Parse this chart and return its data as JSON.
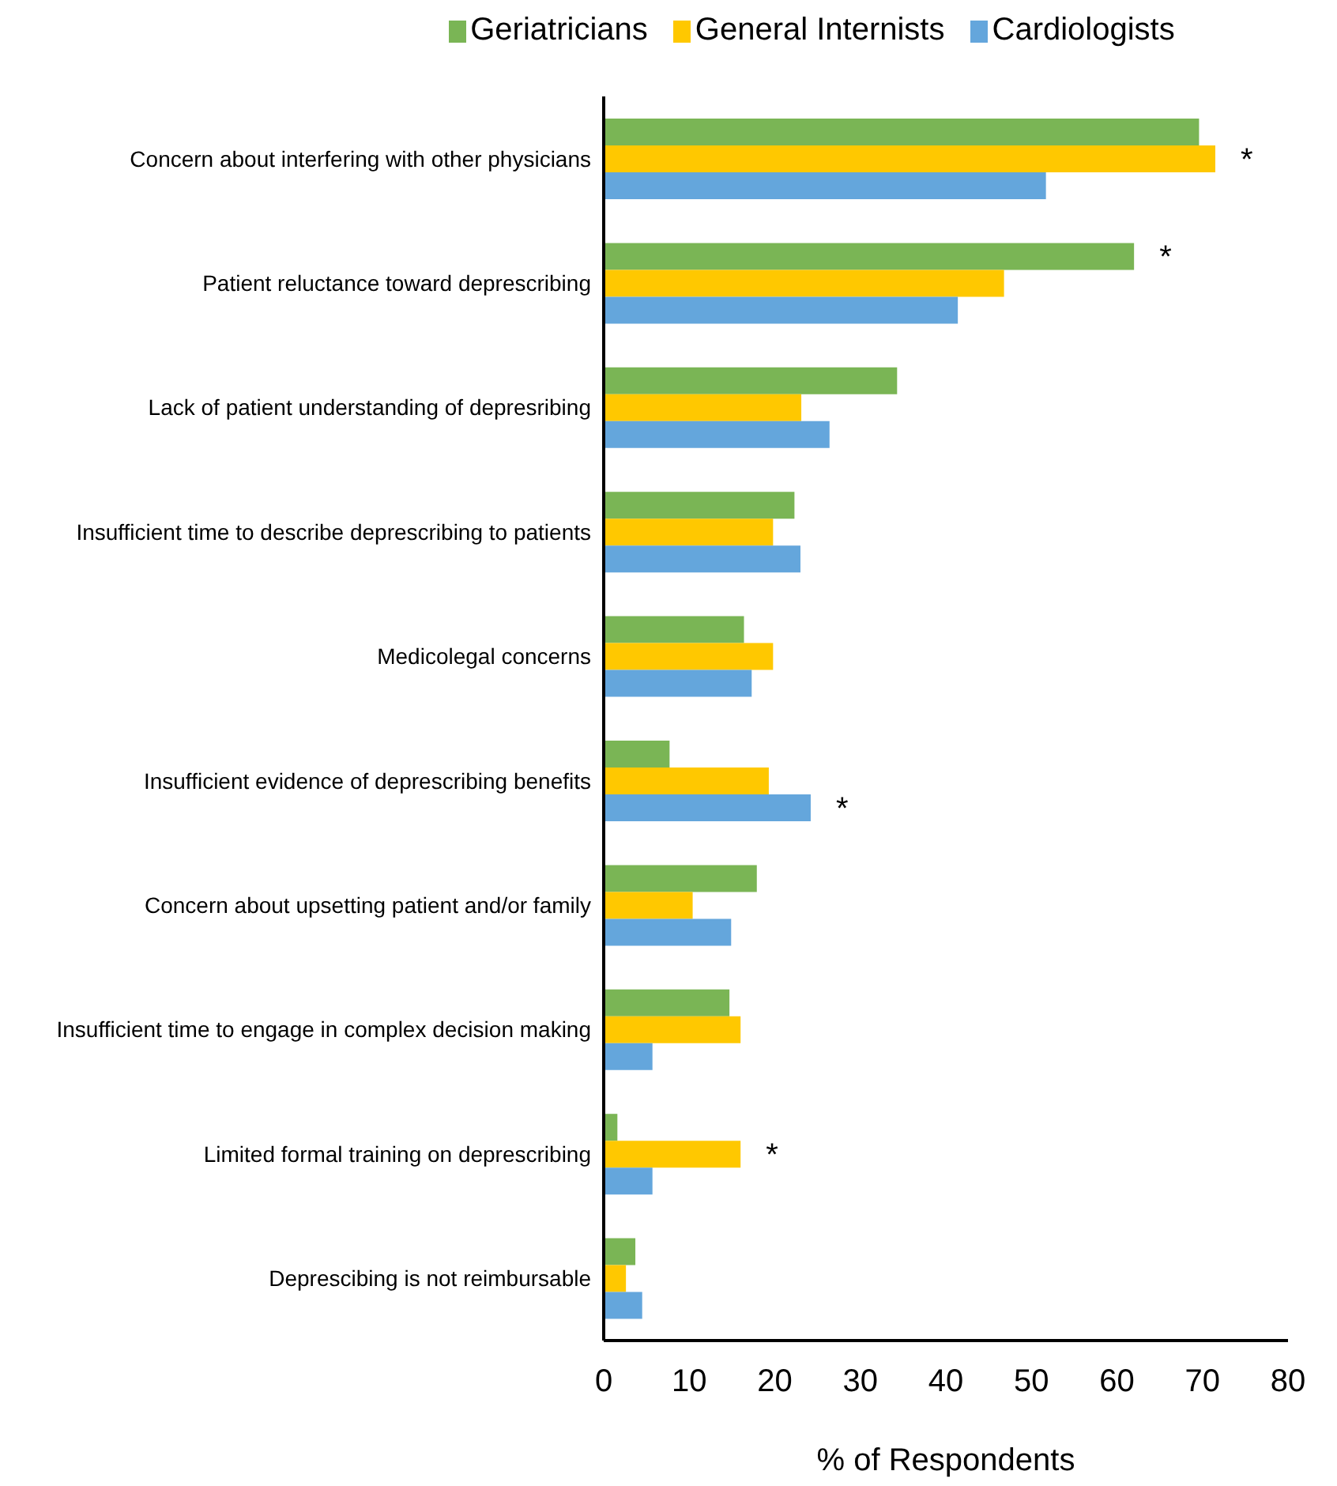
{
  "chart_data": {
    "type": "bar",
    "orientation": "horizontal",
    "xlabel": "% of Respondents",
    "categories": [
      "Concern about interfering with other physicians",
      "Patient reluctance toward deprescribing",
      "Lack of patient understanding of depresribing",
      "Insufficient time to describe deprescribing to patients",
      "Medicolegal concerns",
      "Insufficient evidence of deprescribing benefits",
      "Concern about upsetting patient and/or family",
      "Insufficient time to engage in complex decision making",
      "Limited formal training on deprescribing",
      "Deprescibing is not reimbursable"
    ],
    "series": [
      {
        "name": "Geriatricians",
        "color": "#7ab555",
        "values": [
          69.6,
          62,
          34.3,
          22.3,
          16.4,
          7.7,
          17.9,
          14.7,
          1.6,
          3.7
        ],
        "value_labels": [
          null,
          "*",
          null,
          null,
          null,
          null,
          null,
          null,
          null,
          null
        ]
      },
      {
        "name": "General Internists",
        "color": "#ffc800",
        "values": [
          71.5,
          46.8,
          23.1,
          19.8,
          19.8,
          19.3,
          10.4,
          16,
          16,
          2.6
        ],
        "value_labels": [
          "*",
          null,
          null,
          null,
          null,
          null,
          null,
          null,
          "*",
          null
        ]
      },
      {
        "name": "Cardiologists",
        "color": "#64a6dc",
        "values": [
          51.7,
          41.4,
          26.4,
          23,
          17.3,
          24.2,
          14.9,
          5.7,
          5.7,
          4.5
        ],
        "value_labels": [
          null,
          null,
          null,
          null,
          null,
          "*",
          null,
          null,
          null,
          null
        ]
      }
    ],
    "xlim": [
      0,
      80
    ],
    "xticks": [
      0,
      10,
      20,
      30,
      40,
      50,
      60,
      70,
      80
    ],
    "legend": "top",
    "grid": false
  }
}
